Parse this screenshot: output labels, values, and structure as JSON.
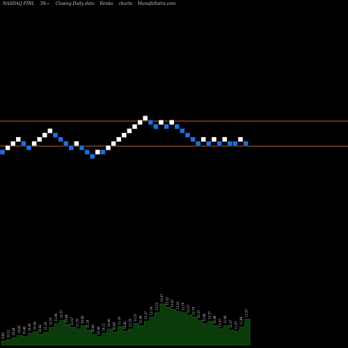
{
  "header": {
    "ticker": "NASDAQ FINL",
    "change": "3%~",
    "chart_kind": "Closing Daily data",
    "chart_type": "Renko",
    "suffix": "charts",
    "site": "MunafaSutra.com"
  },
  "colors": {
    "background": "#000000",
    "up_brick": "#ffffff",
    "down_brick": "#1e6fe0",
    "level_line": "#c8651e",
    "volume_fill": "#0b3a0b",
    "volume_text": "#d0d0d0"
  },
  "chart_data": {
    "type": "renko",
    "title": "",
    "levels": [
      174,
      210
    ],
    "bricks": [
      {
        "dir": "down",
        "row": 0
      },
      {
        "dir": "up",
        "row": 1
      },
      {
        "dir": "up",
        "row": 2
      },
      {
        "dir": "up",
        "row": 3
      },
      {
        "dir": "down",
        "row": 2
      },
      {
        "dir": "down",
        "row": 1
      },
      {
        "dir": "up",
        "row": 2
      },
      {
        "dir": "up",
        "row": 3
      },
      {
        "dir": "up",
        "row": 4
      },
      {
        "dir": "up",
        "row": 5
      },
      {
        "dir": "down",
        "row": 4
      },
      {
        "dir": "down",
        "row": 3
      },
      {
        "dir": "down",
        "row": 2
      },
      {
        "dir": "down",
        "row": 1
      },
      {
        "dir": "up",
        "row": 2
      },
      {
        "dir": "down",
        "row": 1
      },
      {
        "dir": "down",
        "row": 0
      },
      {
        "dir": "down",
        "row": -1
      },
      {
        "dir": "up",
        "row": 0
      },
      {
        "dir": "down",
        "row": 0
      },
      {
        "dir": "up",
        "row": 1
      },
      {
        "dir": "up",
        "row": 2
      },
      {
        "dir": "up",
        "row": 3
      },
      {
        "dir": "up",
        "row": 4
      },
      {
        "dir": "up",
        "row": 5
      },
      {
        "dir": "up",
        "row": 6
      },
      {
        "dir": "up",
        "row": 7
      },
      {
        "dir": "up",
        "row": 8
      },
      {
        "dir": "down",
        "row": 7
      },
      {
        "dir": "down",
        "row": 6
      },
      {
        "dir": "up",
        "row": 7
      },
      {
        "dir": "down",
        "row": 6
      },
      {
        "dir": "up",
        "row": 7
      },
      {
        "dir": "down",
        "row": 6
      },
      {
        "dir": "down",
        "row": 5
      },
      {
        "dir": "down",
        "row": 4
      },
      {
        "dir": "down",
        "row": 3
      },
      {
        "dir": "down",
        "row": 2
      },
      {
        "dir": "up",
        "row": 3
      },
      {
        "dir": "down",
        "row": 2
      },
      {
        "dir": "up",
        "row": 3
      },
      {
        "dir": "down",
        "row": 2
      },
      {
        "dir": "up",
        "row": 3
      },
      {
        "dir": "down",
        "row": 2
      },
      {
        "dir": "down",
        "row": 2
      },
      {
        "dir": "up",
        "row": 3
      },
      {
        "dir": "down",
        "row": 2
      }
    ],
    "volume": [
      {
        "value": 8,
        "label": "9.80"
      },
      {
        "value": 10,
        "label": "10.11"
      },
      {
        "value": 14,
        "label": "10.46"
      },
      {
        "value": 18,
        "label": "10.82"
      },
      {
        "value": 16,
        "label": "10.46"
      },
      {
        "value": 22,
        "label": "10.82"
      },
      {
        "value": 25,
        "label": "10.46"
      },
      {
        "value": 20,
        "label": "10.82"
      },
      {
        "value": 24,
        "label": "11.19"
      },
      {
        "value": 33,
        "label": "11.57"
      },
      {
        "value": 40,
        "label": "11.96"
      },
      {
        "value": 46,
        "label": "12.37"
      },
      {
        "value": 38,
        "label": "11.96"
      },
      {
        "value": 33,
        "label": "11.57"
      },
      {
        "value": 30,
        "label": "11.19"
      },
      {
        "value": 36,
        "label": "10.82"
      },
      {
        "value": 28,
        "label": "11.19"
      },
      {
        "value": 20,
        "label": "10.82"
      },
      {
        "value": 16,
        "label": "10.46"
      },
      {
        "value": 22,
        "label": "10.11"
      },
      {
        "value": 30,
        "label": "10.46"
      },
      {
        "value": 24,
        "label": "10.82"
      },
      {
        "value": 34,
        "label": "11.19"
      },
      {
        "value": 26,
        "label": "10.82"
      },
      {
        "value": 30,
        "label": "11.19"
      },
      {
        "value": 40,
        "label": "11.57"
      },
      {
        "value": 36,
        "label": "11.96"
      },
      {
        "value": 44,
        "label": "12.37"
      },
      {
        "value": 52,
        "label": "12.79"
      },
      {
        "value": 60,
        "label": "13.22"
      },
      {
        "value": 76,
        "label": "13.67"
      },
      {
        "value": 70,
        "label": "13.22"
      },
      {
        "value": 66,
        "label": "13.67"
      },
      {
        "value": 62,
        "label": "13.22"
      },
      {
        "value": 60,
        "label": "12.79"
      },
      {
        "value": 56,
        "label": "12.37"
      },
      {
        "value": 52,
        "label": "12.79"
      },
      {
        "value": 46,
        "label": "12.37"
      },
      {
        "value": 40,
        "label": "11.96"
      },
      {
        "value": 44,
        "label": "12.37"
      },
      {
        "value": 36,
        "label": "11.96"
      },
      {
        "value": 30,
        "label": "11.57"
      },
      {
        "value": 36,
        "label": "11.96"
      },
      {
        "value": 28,
        "label": "11.57"
      },
      {
        "value": 26,
        "label": "11.57"
      },
      {
        "value": 34,
        "label": "11.96"
      },
      {
        "value": 48,
        "label": "11.57"
      }
    ]
  }
}
